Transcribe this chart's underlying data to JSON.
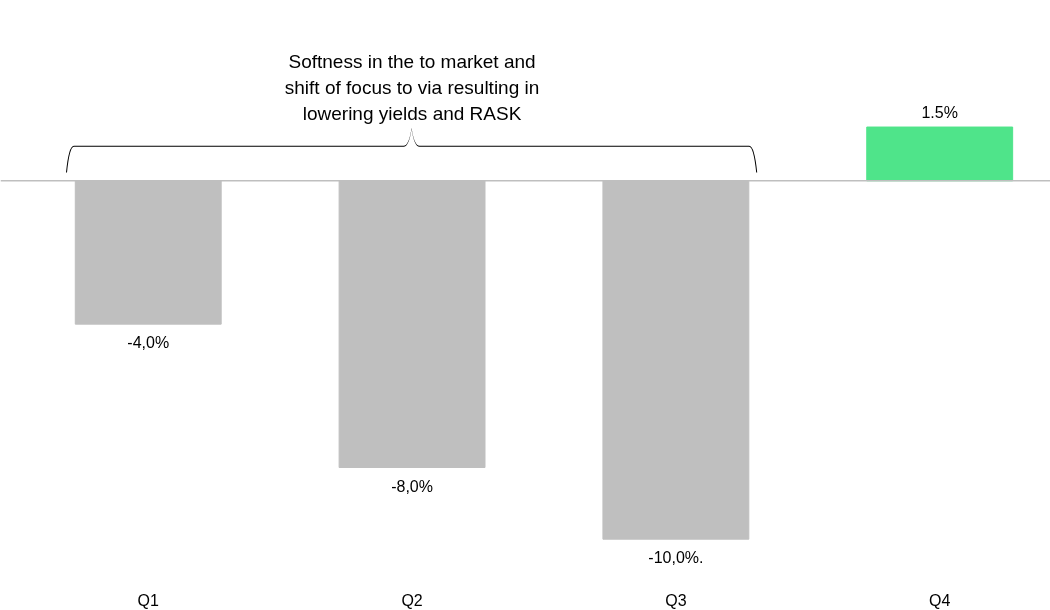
{
  "chart_data": {
    "type": "bar",
    "categories": [
      "Q1",
      "Q2",
      "Q3",
      "Q4"
    ],
    "values": [
      -4.0,
      -8.0,
      -10.0,
      1.5
    ],
    "colors": [
      "#bfbfbf",
      "#bfbfbf",
      "#bfbfbf",
      "#4fe48a"
    ],
    "value_labels": [
      "-4,0%",
      "-8,0%",
      "-10,0%.",
      "1.5%"
    ],
    "annotations": [
      "Softness in the to market and shift of focus to via resulting in lowering yields and RASK"
    ],
    "grid": false
  }
}
